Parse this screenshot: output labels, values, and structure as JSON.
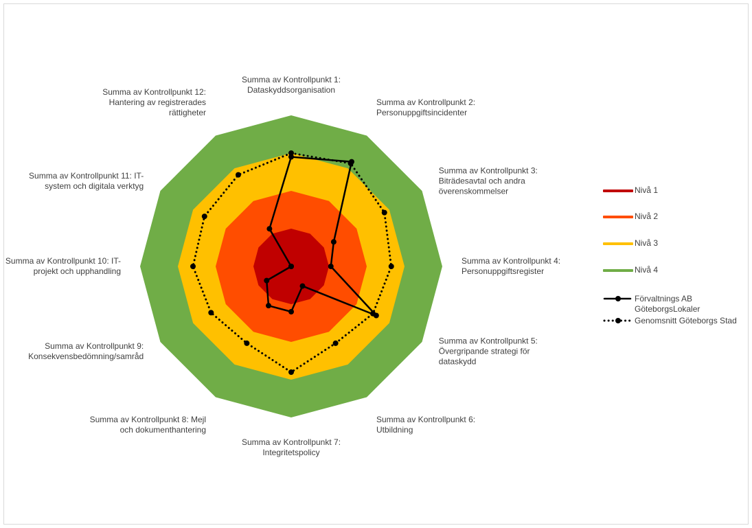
{
  "chart_data": {
    "type": "radar",
    "categories": [
      "Summa av Kontrollpunkt 1: Dataskyddsorganisation",
      "Summa av Kontrollpunkt 2: Personuppgiftsincidenter",
      "Summa av Kontrollpunkt 3: Biträdesavtal och andra överenskommelser",
      "Summa av Kontrollpunkt 4: Personuppgiftsregister",
      "Summa av Kontrollpunkt 5: Övergripande strategi för dataskydd",
      "Summa av Kontrollpunkt 6: Utbildning",
      "Summa av Kontrollpunkt 7: Integritetspolicy",
      "Summa av Kontrollpunkt 8: Mejl och dokumenthantering",
      "Summa av Kontrollpunkt 9: Konsekvensbedömning/samråd",
      "Summa av Kontrollpunkt 10: IT-projekt och upphandling",
      "Summa av Kontrollpunkt 11: IT-system och digitala verktyg",
      "Summa av Kontrollpunkt 12: Hantering av registrerades rättigheter"
    ],
    "category_label_lines": [
      [
        "Summa av Kontrollpunkt 1:",
        "Dataskyddsorganisation"
      ],
      [
        "Summa av Kontrollpunkt 2:",
        "Personuppgiftsincidenter"
      ],
      [
        "Summa av Kontrollpunkt 3:",
        "Biträdesavtal och andra",
        "överenskommelser"
      ],
      [
        "Summa av Kontrollpunkt 4:",
        "Personuppgiftsregister"
      ],
      [
        "Summa av Kontrollpunkt 5:",
        "Övergripande strategi för",
        "dataskydd"
      ],
      [
        "Summa av Kontrollpunkt 6:",
        "Utbildning"
      ],
      [
        "Summa av Kontrollpunkt 7:",
        "Integritetspolicy"
      ],
      [
        "Summa av Kontrollpunkt 8: Mejl",
        "och dokumenthantering"
      ],
      [
        "Summa av Kontrollpunkt 9:",
        "Konsekvensbedömning/samråd"
      ],
      [
        "Summa av Kontrollpunkt 10: IT-",
        "projekt och upphandling"
      ],
      [
        "Summa av Kontrollpunkt 11: IT-",
        "system och digitala verktyg"
      ],
      [
        "Summa av Kontrollpunkt 12:",
        "Hantering av registrerades",
        "rättigheter"
      ]
    ],
    "rlim": [
      0,
      4
    ],
    "bands": [
      {
        "name": "Nivå 1",
        "value": 1,
        "color": "#c00000"
      },
      {
        "name": "Nivå 2",
        "value": 2,
        "color": "#ff4d00"
      },
      {
        "name": "Nivå 3",
        "value": 3,
        "color": "#ffc000"
      },
      {
        "name": "Nivå 4",
        "value": 4,
        "color": "#70ad47"
      }
    ],
    "series": [
      {
        "name": "Förvaltnings AB GöteborgsLokaler",
        "style": "solid",
        "color": "#000000",
        "values": [
          2.9,
          3.2,
          1.3,
          1.05,
          2.6,
          0.6,
          1.2,
          1.2,
          0.75,
          0.0,
          0.0,
          1.15
        ]
      },
      {
        "name": "Genomsnitt Göteborgs Stad",
        "style": "dotted",
        "color": "#000000",
        "values": [
          3.0,
          3.15,
          2.85,
          2.65,
          2.5,
          2.35,
          2.8,
          2.35,
          2.45,
          2.6,
          2.65,
          2.8
        ]
      }
    ],
    "legend_position": "right",
    "grid": false
  },
  "legend": {
    "items": [
      {
        "label": "Nivå 1",
        "type": "band",
        "color": "#c00000"
      },
      {
        "label": "Nivå 2",
        "type": "band",
        "color": "#ff4d00"
      },
      {
        "label": "Nivå 3",
        "type": "band",
        "color": "#ffc000"
      },
      {
        "label": "Nivå 4",
        "type": "band",
        "color": "#70ad47"
      },
      {
        "label": "Förvaltnings AB GöteborgsLokaler",
        "type": "solid",
        "color": "#000000"
      },
      {
        "label": "Genomsnitt Göteborgs Stad",
        "type": "dotted",
        "color": "#000000"
      }
    ]
  }
}
